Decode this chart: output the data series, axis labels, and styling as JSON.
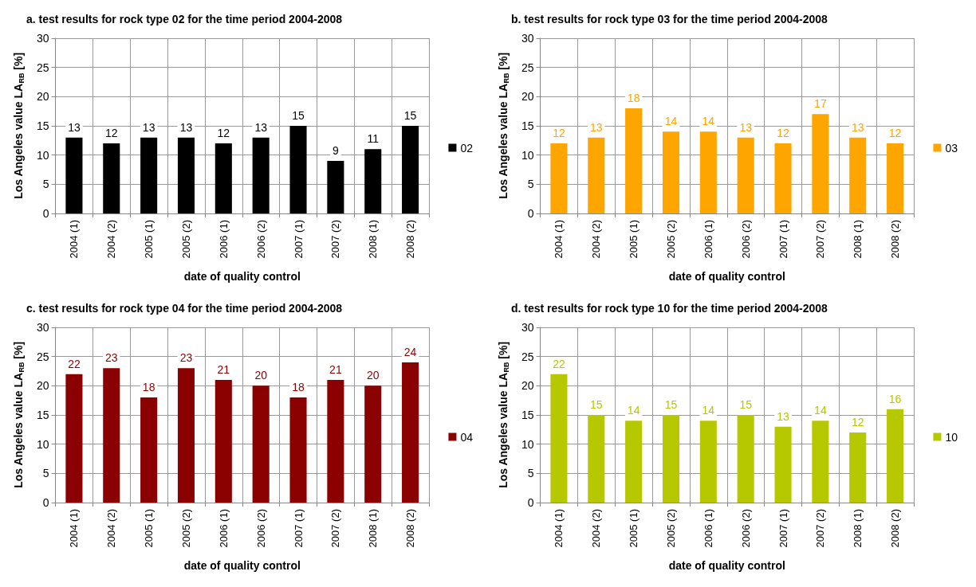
{
  "chart_data": [
    {
      "type": "bar",
      "title": "a. test results for rock type 02 for the time period 2004-2008",
      "xlabel": "date of quality control",
      "ylabel": "Los Angeles value LA$_{RB}$ [%]",
      "categories": [
        "2004 (1)",
        "2004 (2)",
        "2005 (1)",
        "2005 (2)",
        "2006 (1)",
        "2006 (2)",
        "2007 (1)",
        "2007 (2)",
        "2008 (1)",
        "2008 (2)"
      ],
      "series": [
        {
          "name": "02",
          "color": "#000000",
          "values": [
            13,
            12,
            13,
            13,
            12,
            13,
            15,
            9,
            11,
            15
          ]
        }
      ],
      "ylim": [
        0,
        30
      ],
      "yticks": [
        0,
        5,
        10,
        15,
        20,
        25,
        30
      ],
      "grid": true,
      "legend": "right",
      "data_labels": true
    },
    {
      "type": "bar",
      "title": "b. test results for rock type 03 for the time period 2004-2008",
      "xlabel": "date of quality control",
      "ylabel": "Los Angeles value LA$_{RB}$ [%]",
      "categories": [
        "2004 (1)",
        "2004 (2)",
        "2005 (1)",
        "2005 (2)",
        "2006 (1)",
        "2006 (2)",
        "2007 (1)",
        "2007 (2)",
        "2008 (1)",
        "2008 (2)"
      ],
      "series": [
        {
          "name": "03",
          "color": "#ffa500",
          "values": [
            12,
            13,
            18,
            14,
            14,
            13,
            12,
            17,
            13,
            12
          ]
        }
      ],
      "ylim": [
        0,
        30
      ],
      "yticks": [
        0,
        5,
        10,
        15,
        20,
        25,
        30
      ],
      "grid": true,
      "legend": "right",
      "data_labels": true
    },
    {
      "type": "bar",
      "title": "c. test results for rock type 04 for the time period 2004-2008",
      "xlabel": "date of quality control",
      "ylabel": "Los Angeles value LA$_{RB}$ [%]",
      "categories": [
        "2004 (1)",
        "2004 (2)",
        "2005 (1)",
        "2005 (2)",
        "2006 (1)",
        "2006 (2)",
        "2007 (1)",
        "2007 (2)",
        "2008 (1)",
        "2008 (2)"
      ],
      "series": [
        {
          "name": "04",
          "color": "#8b0000",
          "values": [
            22,
            23,
            18,
            23,
            21,
            20,
            18,
            21,
            20,
            24
          ]
        }
      ],
      "ylim": [
        0,
        30
      ],
      "yticks": [
        0,
        5,
        10,
        15,
        20,
        25,
        30
      ],
      "grid": true,
      "legend": "right",
      "data_labels": true
    },
    {
      "type": "bar",
      "title": "d. test results for rock type 10 for the time period 2004-2008",
      "xlabel": "date of quality control",
      "ylabel": "Los Angeles value LA$_{RB}$ [%]",
      "categories": [
        "2004 (1)",
        "2004 (2)",
        "2005 (1)",
        "2005 (2)",
        "2006 (1)",
        "2006 (2)",
        "2007 (1)",
        "2007 (2)",
        "2008 (1)",
        "2008 (2)"
      ],
      "series": [
        {
          "name": "10",
          "color": "#b5c800",
          "values": [
            22,
            15,
            14,
            15,
            14,
            15,
            13,
            14,
            12,
            16
          ]
        }
      ],
      "ylim": [
        0,
        30
      ],
      "yticks": [
        0,
        5,
        10,
        15,
        20,
        25,
        30
      ],
      "grid": true,
      "legend": "right",
      "data_labels": true
    }
  ]
}
